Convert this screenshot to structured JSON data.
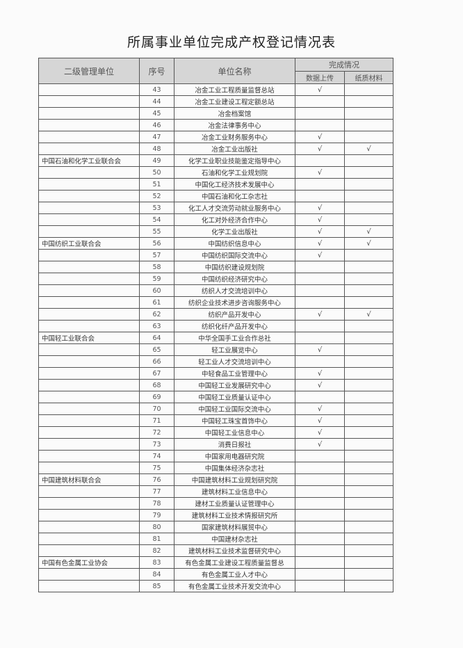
{
  "title": "所属事业单位完成产权登记情况表",
  "headers": {
    "group": "二级管理单位",
    "num": "序号",
    "name": "单位名称",
    "status": "完成情况",
    "upload": "数据上传",
    "paper": "纸质材料"
  },
  "check_mark": "√",
  "rows": [
    {
      "group": "",
      "num": "43",
      "name": "冶金工业工程质量监督总站",
      "upload": "√",
      "paper": ""
    },
    {
      "group": "",
      "num": "44",
      "name": "冶金工业建设工程定额总站",
      "upload": "",
      "paper": ""
    },
    {
      "group": "",
      "num": "45",
      "name": "冶金档案馆",
      "upload": "",
      "paper": ""
    },
    {
      "group": "",
      "num": "46",
      "name": "冶金法律事务中心",
      "upload": "",
      "paper": ""
    },
    {
      "group": "",
      "num": "47",
      "name": "冶金工业财务服务中心",
      "upload": "√",
      "paper": ""
    },
    {
      "group": "",
      "num": "48",
      "name": "冶金工业出版社",
      "upload": "√",
      "paper": "√"
    },
    {
      "group": "中国石油和化学工业联合会",
      "num": "49",
      "name": "化学工业职业技能鉴定指导中心",
      "upload": "",
      "paper": ""
    },
    {
      "group": "",
      "num": "50",
      "name": "石油和化学工业规划院",
      "upload": "√",
      "paper": ""
    },
    {
      "group": "",
      "num": "51",
      "name": "中国化工经济技术发展中心",
      "upload": "",
      "paper": ""
    },
    {
      "group": "",
      "num": "52",
      "name": "中国石油和化工杂志社",
      "upload": "",
      "paper": ""
    },
    {
      "group": "",
      "num": "53",
      "name": "化工人才交流劳动就业服务中心",
      "upload": "√",
      "paper": ""
    },
    {
      "group": "",
      "num": "54",
      "name": "化工对外经济合作中心",
      "upload": "√",
      "paper": ""
    },
    {
      "group": "",
      "num": "55",
      "name": "化学工业出版社",
      "upload": "√",
      "paper": "√"
    },
    {
      "group": "中国纺织工业联合会",
      "num": "56",
      "name": "中国纺织信息中心",
      "upload": "√",
      "paper": "√"
    },
    {
      "group": "",
      "num": "57",
      "name": "中国纺织国际交流中心",
      "upload": "√",
      "paper": ""
    },
    {
      "group": "",
      "num": "58",
      "name": "中国纺织建设规划院",
      "upload": "",
      "paper": ""
    },
    {
      "group": "",
      "num": "59",
      "name": "中国纺织经济研究中心",
      "upload": "",
      "paper": ""
    },
    {
      "group": "",
      "num": "60",
      "name": "纺织人才交流培训中心",
      "upload": "",
      "paper": ""
    },
    {
      "group": "",
      "num": "61",
      "name": "纺织企业技术进步咨询服务中心",
      "upload": "",
      "paper": ""
    },
    {
      "group": "",
      "num": "62",
      "name": "纺织产品开发中心",
      "upload": "√",
      "paper": "√"
    },
    {
      "group": "",
      "num": "63",
      "name": "纺织化纤产品开发中心",
      "upload": "",
      "paper": ""
    },
    {
      "group": "中国轻工业联合会",
      "num": "64",
      "name": "中华全国手工业合作总社",
      "upload": "",
      "paper": ""
    },
    {
      "group": "",
      "num": "65",
      "name": "轻工业展览中心",
      "upload": "√",
      "paper": ""
    },
    {
      "group": "",
      "num": "66",
      "name": "轻工业人才交流培训中心",
      "upload": "",
      "paper": ""
    },
    {
      "group": "",
      "num": "67",
      "name": "中轻食品工业管理中心",
      "upload": "√",
      "paper": ""
    },
    {
      "group": "",
      "num": "68",
      "name": "中国轻工业发展研究中心",
      "upload": "√",
      "paper": ""
    },
    {
      "group": "",
      "num": "69",
      "name": "中国轻工业质量认证中心",
      "upload": "",
      "paper": ""
    },
    {
      "group": "",
      "num": "70",
      "name": "中国轻工业国际交流中心",
      "upload": "√",
      "paper": ""
    },
    {
      "group": "",
      "num": "71",
      "name": "中国轻工珠宝首饰中心",
      "upload": "√",
      "paper": ""
    },
    {
      "group": "",
      "num": "72",
      "name": "中国轻工业信息中心",
      "upload": "√",
      "paper": ""
    },
    {
      "group": "",
      "num": "73",
      "name": "消费日报社",
      "upload": "√",
      "paper": ""
    },
    {
      "group": "",
      "num": "74",
      "name": "中国家用电器研究院",
      "upload": "",
      "paper": ""
    },
    {
      "group": "",
      "num": "75",
      "name": "中国集体经济杂志社",
      "upload": "",
      "paper": ""
    },
    {
      "group": "中国建筑材料联合会",
      "num": "76",
      "name": "中国建筑材料工业规划研究院",
      "upload": "",
      "paper": ""
    },
    {
      "group": "",
      "num": "77",
      "name": "建筑材料工业信息中心",
      "upload": "",
      "paper": ""
    },
    {
      "group": "",
      "num": "78",
      "name": "建材工业质量认证管理中心",
      "upload": "",
      "paper": ""
    },
    {
      "group": "",
      "num": "79",
      "name": "建筑材料工业技术情报研究所",
      "upload": "",
      "paper": ""
    },
    {
      "group": "",
      "num": "80",
      "name": "国家建筑材料展贸中心",
      "upload": "",
      "paper": ""
    },
    {
      "group": "",
      "num": "81",
      "name": "中国建材杂志社",
      "upload": "",
      "paper": ""
    },
    {
      "group": "",
      "num": "82",
      "name": "建筑材料工业技术监督研究中心",
      "upload": "",
      "paper": ""
    },
    {
      "group": "中国有色金属工业协会",
      "num": "83",
      "name": "有色金属工业建设工程质量监督总",
      "upload": "",
      "paper": ""
    },
    {
      "group": "",
      "num": "84",
      "name": "有色金属工业人才中心",
      "upload": "",
      "paper": ""
    },
    {
      "group": "",
      "num": "85",
      "name": "有色金属工业技术开发交流中心",
      "upload": "",
      "paper": ""
    }
  ]
}
